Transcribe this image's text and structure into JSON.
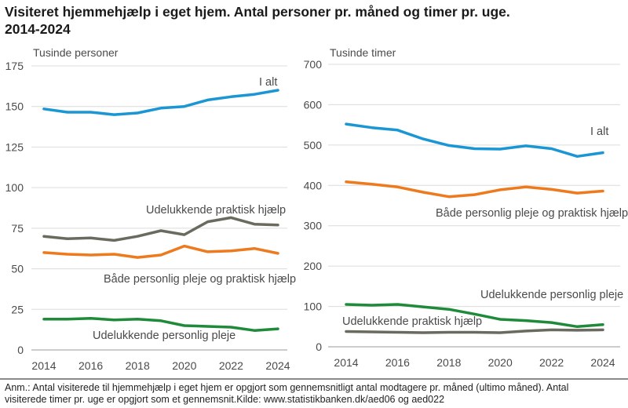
{
  "title_line1": "Visiteret hjemmehjælp i eget hjem. Antal personer pr. måned og timer pr. uge.",
  "title_line2": "2014-2024",
  "footnote_line1": "Anm.: Antal visiterede til hjemmehjælp i eget hjem er opgjort som gennemsnitligt antal modtagere pr. måned (ultimo måned). Antal",
  "footnote_line2": "visiterede timer pr. uge er opgjort som et gennemsnit.Kilde: www.statistikbanken.dk/aed06 og aed022",
  "colors": {
    "blue": "#1a96d4",
    "gray": "#6a6a5f",
    "orange": "#ee7a1e",
    "green": "#1e8a3a"
  },
  "chart_data": [
    {
      "type": "line",
      "unit_label": "Tusinde personer",
      "x": [
        2014,
        2015,
        2016,
        2017,
        2018,
        2019,
        2020,
        2021,
        2022,
        2023,
        2024
      ],
      "xticks": [
        2014,
        2016,
        2018,
        2020,
        2022,
        2024
      ],
      "ylim": [
        0,
        175
      ],
      "yticks": [
        0,
        25,
        50,
        75,
        100,
        125,
        150,
        175
      ],
      "series": [
        {
          "name": "I alt",
          "color": "blue",
          "values": [
            148.5,
            146.5,
            146.5,
            145,
            146,
            149,
            150,
            154,
            156,
            157.5,
            160
          ]
        },
        {
          "name": "Udelukkende praktisk hjælp",
          "color": "gray",
          "values": [
            70,
            68.5,
            69,
            67.5,
            70,
            73.5,
            71,
            79,
            81.5,
            77.5,
            77
          ]
        },
        {
          "name": "Både personlig pleje og praktisk hjælp",
          "color": "orange",
          "values": [
            60,
            59,
            58.5,
            59,
            57,
            58.5,
            64,
            60.5,
            61,
            62.5,
            59.5
          ]
        },
        {
          "name": "Udelukkende personlig pleje",
          "color": "green",
          "values": [
            19,
            19,
            19.5,
            18.5,
            19,
            18,
            15,
            14.5,
            14,
            12,
            13
          ]
        }
      ]
    },
    {
      "type": "line",
      "unit_label": "Tusinde timer",
      "x": [
        2014,
        2015,
        2016,
        2017,
        2018,
        2019,
        2020,
        2021,
        2022,
        2023,
        2024
      ],
      "xticks": [
        2014,
        2016,
        2018,
        2020,
        2022,
        2024
      ],
      "ylim": [
        0,
        700
      ],
      "yticks": [
        0,
        100,
        200,
        300,
        400,
        500,
        600,
        700
      ],
      "series": [
        {
          "name": "I alt",
          "color": "blue",
          "values": [
            552,
            543,
            537,
            515,
            499,
            491,
            490,
            498,
            491,
            472,
            481
          ]
        },
        {
          "name": "Både personlig pleje og praktisk hjælp",
          "color": "orange",
          "values": [
            409,
            403,
            396,
            383,
            372,
            377,
            389,
            396,
            390,
            381,
            386
          ]
        },
        {
          "name": "Udelukkende personlig pleje",
          "color": "green",
          "values": [
            105,
            103,
            105,
            99,
            93,
            81,
            68,
            65,
            60,
            50,
            55
          ]
        },
        {
          "name": "Udelukkende praktisk hjælp",
          "color": "gray",
          "values": [
            38,
            37,
            36,
            35,
            36,
            36,
            35,
            39,
            42,
            41,
            42
          ]
        }
      ]
    }
  ]
}
